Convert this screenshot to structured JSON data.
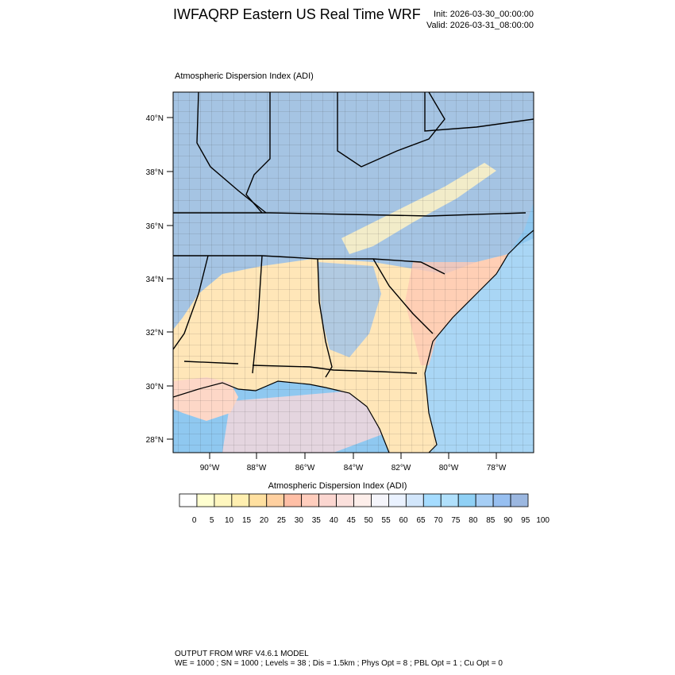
{
  "title": "IWFAQRP Eastern US Real Time WRF",
  "init": "Init: 2026-03-30_00:00:00",
  "valid": "Valid: 2026-03-31_08:00:00",
  "field_label": "Atmospheric Dispersion Index   (ADI)",
  "colorbar": {
    "title": "Atmospheric Dispersion Index  (ADI)",
    "levels": [
      "0",
      "5",
      "10",
      "15",
      "20",
      "25",
      "30",
      "35",
      "40",
      "45",
      "50",
      "55",
      "60",
      "65",
      "70",
      "75",
      "80",
      "85",
      "90",
      "95",
      "100"
    ],
    "colors": [
      "#ffffff",
      "#ffffd0",
      "#fff7bf",
      "#ffefb0",
      "#ffe0a0",
      "#ffd0a0",
      "#ffbfa6",
      "#ffcdbd",
      "#fbd6d0",
      "#fbe0dc",
      "#fdeeea",
      "#f5f5fb",
      "#eaf2ff",
      "#d2e6fb",
      "#a5dcff",
      "#b0e0fc",
      "#8fd0f5",
      "#a6cef5",
      "#97bff0",
      "#9bb7e0",
      "#a2bcd8"
    ]
  },
  "map": {
    "lat_ticks": [
      "40°N",
      "38°N",
      "36°N",
      "34°N",
      "32°N",
      "30°N",
      "28°N"
    ],
    "lon_ticks": [
      "90°W",
      "88°W",
      "86°W",
      "84°W",
      "82°W",
      "80°W",
      "78°W"
    ]
  },
  "footer": {
    "line1": "OUTPUT FROM WRF V4.6.1 MODEL",
    "line2": "WE = 1000 ; SN = 1000 ; Levels = 38 ; Dis = 1.5km ; Phys Opt = 8 ; PBL Opt = 1 ; Cu Opt = 0"
  }
}
